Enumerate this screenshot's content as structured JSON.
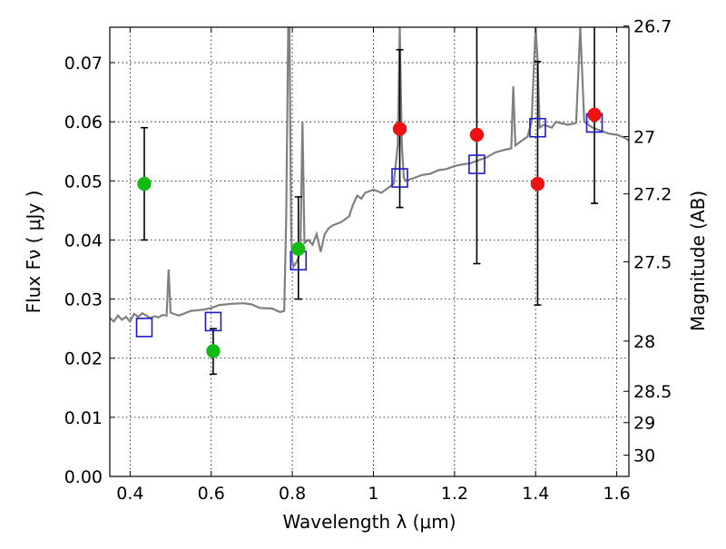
{
  "colors": {
    "spectrum": "#808080",
    "model": "#1a1acc",
    "green_points": "#11bb11",
    "red_points": "#ee1111",
    "errorbar": "#000000"
  },
  "chart_data": {
    "type": "scatter",
    "xlabel": "Wavelength  λ (μm)",
    "ylabel": "Flux  Fν  ( μJy )",
    "y2label": "Magnitude (AB)",
    "xlim": [
      0.35,
      1.63
    ],
    "ylim": [
      0.0,
      0.076
    ],
    "grid": true,
    "x_ticks": [
      0.4,
      0.6,
      0.8,
      1.0,
      1.2,
      1.4,
      1.6
    ],
    "x_tick_labels": [
      "0.4",
      "0.6",
      "0.8",
      "1",
      "1.2",
      "1.4",
      "1.6"
    ],
    "y_ticks": [
      0.0,
      0.01,
      0.02,
      0.03,
      0.04,
      0.05,
      0.06,
      0.07
    ],
    "y_tick_labels": [
      "0.00",
      "0.01",
      "0.02",
      "0.03",
      "0.04",
      "0.05",
      "0.06",
      "0.07"
    ],
    "y2_ticks": [
      {
        "label": "26.7",
        "flux": 0.0762
      },
      {
        "label": "27",
        "flux": 0.0575
      },
      {
        "label": "27.2",
        "flux": 0.0478
      },
      {
        "label": "27.5",
        "flux": 0.0363
      },
      {
        "label": "28",
        "flux": 0.0229
      },
      {
        "label": "28.5",
        "flux": 0.0144
      },
      {
        "label": "29",
        "flux": 0.0091
      },
      {
        "label": "30",
        "flux": 0.0036
      }
    ],
    "series": [
      {
        "type": "line",
        "x": [
          0.35,
          0.36,
          0.37,
          0.38,
          0.39,
          0.4,
          0.41,
          0.42,
          0.43,
          0.44,
          0.45,
          0.46,
          0.47,
          0.48,
          0.49,
          0.495,
          0.5,
          0.52,
          0.55,
          0.58,
          0.6,
          0.62,
          0.65,
          0.68,
          0.7,
          0.72,
          0.75,
          0.77,
          0.78,
          0.785,
          0.79,
          0.793,
          0.797,
          0.8,
          0.803,
          0.81,
          0.815,
          0.82,
          0.825,
          0.83,
          0.84,
          0.85,
          0.86,
          0.87,
          0.875,
          0.88,
          0.89,
          0.9,
          0.92,
          0.94,
          0.95,
          0.96,
          0.97,
          0.98,
          1.0,
          1.02,
          1.04,
          1.05,
          1.06,
          1.065,
          1.07,
          1.075,
          1.08,
          1.1,
          1.12,
          1.14,
          1.16,
          1.18,
          1.2,
          1.22,
          1.24,
          1.26,
          1.28,
          1.3,
          1.32,
          1.34,
          1.345,
          1.35,
          1.36,
          1.38,
          1.39,
          1.4,
          1.405,
          1.41,
          1.42,
          1.44,
          1.45,
          1.46,
          1.48,
          1.5,
          1.51,
          1.52,
          1.54,
          1.56,
          1.58,
          1.6,
          1.62,
          1.63
        ],
        "y": [
          0.0268,
          0.0262,
          0.0272,
          0.0265,
          0.027,
          0.0262,
          0.0275,
          0.027,
          0.0276,
          0.0272,
          0.0268,
          0.0271,
          0.0269,
          0.0273,
          0.0272,
          0.035,
          0.0277,
          0.0272,
          0.028,
          0.0282,
          0.0285,
          0.029,
          0.0292,
          0.0293,
          0.0291,
          0.0285,
          0.0284,
          0.0278,
          0.028,
          0.044,
          0.076,
          0.076,
          0.042,
          0.0365,
          0.0355,
          0.0362,
          0.037,
          0.038,
          0.06,
          0.0395,
          0.04,
          0.0392,
          0.041,
          0.038,
          0.0395,
          0.041,
          0.042,
          0.0425,
          0.043,
          0.044,
          0.046,
          0.0475,
          0.047,
          0.048,
          0.0485,
          0.048,
          0.049,
          0.0495,
          0.056,
          0.076,
          0.056,
          0.0505,
          0.05,
          0.0505,
          0.051,
          0.0512,
          0.0518,
          0.052,
          0.0525,
          0.0528,
          0.053,
          0.0535,
          0.054,
          0.0548,
          0.0552,
          0.0555,
          0.066,
          0.056,
          0.0565,
          0.0575,
          0.06,
          0.076,
          0.07,
          0.059,
          0.0595,
          0.059,
          0.06,
          0.0598,
          0.0595,
          0.0598,
          0.076,
          0.06,
          0.059,
          0.0585,
          0.058,
          0.0578,
          0.0573,
          0.0568
        ]
      },
      {
        "type": "marker-square",
        "x": [
          0.435,
          0.605,
          0.815,
          1.065,
          1.255,
          1.405,
          1.545
        ],
        "y": [
          0.0252,
          0.0262,
          0.0365,
          0.0505,
          0.0528,
          0.059,
          0.0598
        ]
      },
      {
        "type": "marker-circle",
        "x": [
          0.435,
          0.605,
          0.815
        ],
        "y": [
          0.0495,
          0.0212,
          0.0385
        ],
        "yerr_low": [
          0.04,
          0.0173,
          0.03
        ],
        "yerr_high": [
          0.059,
          0.025,
          0.0473
        ]
      },
      {
        "type": "marker-circle",
        "x": [
          1.065,
          1.255,
          1.405,
          1.545
        ],
        "y": [
          0.0588,
          0.0578,
          0.0495,
          0.0612
        ],
        "yerr_low": [
          0.0455,
          0.036,
          0.029,
          0.0462
        ],
        "yerr_high": [
          0.0722,
          0.076,
          0.0702,
          0.076
        ]
      }
    ]
  }
}
